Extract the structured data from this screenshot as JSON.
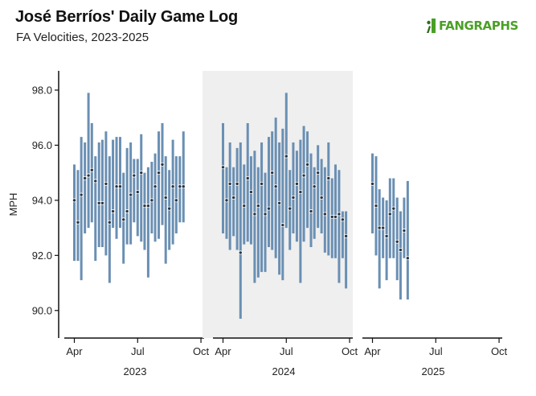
{
  "header": {
    "title": "José Berríos' Daily Game Log",
    "subtitle": "FA Velocities, 2023-2025",
    "logo_text": "FANGRAPHS"
  },
  "colors": {
    "bar": "#6a8fb3",
    "point_fill": "#2a3340",
    "panel_shade": "#efefef",
    "logo_green": "#4aa026"
  },
  "chart_data": {
    "type": "errorbar",
    "ylabel": "MPH",
    "ylim": [
      89,
      98.7
    ],
    "y_ticks": [
      "98.0",
      "96.0",
      "94.0",
      "92.0",
      "90.0"
    ],
    "y_tick_values": [
      98,
      96,
      94,
      92,
      90
    ],
    "x_ticks": [
      "Apr",
      "Jul",
      "Oct"
    ],
    "x_tick_months": [
      4,
      7,
      10
    ],
    "xlim_months": [
      3.6,
      10.15
    ],
    "panels": [
      {
        "year": "2023",
        "shaded": false,
        "games": [
          {
            "m": 4.0,
            "avg": 94.0,
            "lo": 91.8,
            "hi": 95.3
          },
          {
            "m": 4.17,
            "avg": 93.2,
            "lo": 91.8,
            "hi": 95.1
          },
          {
            "m": 4.33,
            "avg": 94.2,
            "lo": 91.1,
            "hi": 96.3
          },
          {
            "m": 4.5,
            "avg": 94.8,
            "lo": 92.8,
            "hi": 96.1
          },
          {
            "m": 4.67,
            "avg": 94.9,
            "lo": 93.0,
            "hi": 97.9
          },
          {
            "m": 4.83,
            "avg": 95.1,
            "lo": 93.2,
            "hi": 96.8
          },
          {
            "m": 5.0,
            "avg": 94.7,
            "lo": 91.8,
            "hi": 95.6
          },
          {
            "m": 5.17,
            "avg": 93.9,
            "lo": 92.3,
            "hi": 96.1
          },
          {
            "m": 5.33,
            "avg": 93.9,
            "lo": 92.3,
            "hi": 96.2
          },
          {
            "m": 5.5,
            "avg": 94.6,
            "lo": 92.0,
            "hi": 96.5
          },
          {
            "m": 5.67,
            "avg": 93.2,
            "lo": 91.0,
            "hi": 95.6
          },
          {
            "m": 5.83,
            "avg": 93.6,
            "lo": 93.0,
            "hi": 96.2
          },
          {
            "m": 6.0,
            "avg": 94.5,
            "lo": 92.6,
            "hi": 96.3
          },
          {
            "m": 6.17,
            "avg": 94.5,
            "lo": 93.0,
            "hi": 96.3
          },
          {
            "m": 6.33,
            "avg": 93.3,
            "lo": 91.7,
            "hi": 95.0
          },
          {
            "m": 6.5,
            "avg": 93.6,
            "lo": 92.4,
            "hi": 95.9
          },
          {
            "m": 6.67,
            "avg": 94.2,
            "lo": 92.4,
            "hi": 96.1
          },
          {
            "m": 6.83,
            "avg": 94.9,
            "lo": 93.2,
            "hi": 95.5
          },
          {
            "m": 7.0,
            "avg": 94.3,
            "lo": 92.7,
            "hi": 95.5
          },
          {
            "m": 7.17,
            "avg": 95.0,
            "lo": 92.5,
            "hi": 96.4
          },
          {
            "m": 7.33,
            "avg": 93.8,
            "lo": 92.2,
            "hi": 95.0
          },
          {
            "m": 7.5,
            "avg": 93.8,
            "lo": 91.2,
            "hi": 95.2
          },
          {
            "m": 7.67,
            "avg": 94.0,
            "lo": 92.8,
            "hi": 95.4
          },
          {
            "m": 7.83,
            "avg": 94.5,
            "lo": 92.5,
            "hi": 95.7
          },
          {
            "m": 8.0,
            "avg": 95.0,
            "lo": 92.6,
            "hi": 96.5
          },
          {
            "m": 8.17,
            "avg": 95.3,
            "lo": 93.1,
            "hi": 96.8
          },
          {
            "m": 8.33,
            "avg": 94.1,
            "lo": 91.7,
            "hi": 95.6
          },
          {
            "m": 8.5,
            "avg": 93.7,
            "lo": 92.2,
            "hi": 95.1
          },
          {
            "m": 8.67,
            "avg": 94.5,
            "lo": 92.4,
            "hi": 96.2
          },
          {
            "m": 8.83,
            "avg": 94.0,
            "lo": 92.8,
            "hi": 95.6
          },
          {
            "m": 9.0,
            "avg": 94.5,
            "lo": 93.2,
            "hi": 95.6
          },
          {
            "m": 9.17,
            "avg": 94.5,
            "lo": 93.2,
            "hi": 96.5
          }
        ]
      },
      {
        "year": "2024",
        "shaded": true,
        "games": [
          {
            "m": 4.0,
            "avg": 95.2,
            "lo": 92.8,
            "hi": 96.8
          },
          {
            "m": 4.17,
            "avg": 94.0,
            "lo": 92.6,
            "hi": 95.2
          },
          {
            "m": 4.33,
            "avg": 94.6,
            "lo": 92.2,
            "hi": 96.1
          },
          {
            "m": 4.5,
            "avg": 94.1,
            "lo": 92.7,
            "hi": 95.2
          },
          {
            "m": 4.67,
            "avg": 94.6,
            "lo": 92.2,
            "hi": 95.9
          },
          {
            "m": 4.83,
            "avg": 92.1,
            "lo": 89.7,
            "hi": 96.1
          },
          {
            "m": 5.0,
            "avg": 93.8,
            "lo": 92.4,
            "hi": 95.3
          },
          {
            "m": 5.17,
            "avg": 94.8,
            "lo": 92.5,
            "hi": 96.8
          },
          {
            "m": 5.33,
            "avg": 94.3,
            "lo": 92.4,
            "hi": 95.6
          },
          {
            "m": 5.5,
            "avg": 93.5,
            "lo": 91.0,
            "hi": 95.8
          },
          {
            "m": 5.67,
            "avg": 93.8,
            "lo": 91.2,
            "hi": 95.2
          },
          {
            "m": 5.83,
            "avg": 94.6,
            "lo": 91.4,
            "hi": 96.1
          },
          {
            "m": 6.0,
            "avg": 93.5,
            "lo": 91.4,
            "hi": 95.0
          },
          {
            "m": 6.17,
            "avg": 93.7,
            "lo": 92.3,
            "hi": 96.3
          },
          {
            "m": 6.33,
            "avg": 95.0,
            "lo": 92.2,
            "hi": 96.5
          },
          {
            "m": 6.5,
            "avg": 94.5,
            "lo": 91.9,
            "hi": 97.0
          },
          {
            "m": 6.67,
            "avg": 93.9,
            "lo": 91.3,
            "hi": 96.1
          },
          {
            "m": 6.83,
            "avg": 93.1,
            "lo": 91.1,
            "hi": 96.6
          },
          {
            "m": 7.0,
            "avg": 95.6,
            "lo": 93.0,
            "hi": 97.9
          },
          {
            "m": 7.17,
            "avg": 93.7,
            "lo": 92.2,
            "hi": 95.1
          },
          {
            "m": 7.33,
            "avg": 94.1,
            "lo": 92.8,
            "hi": 96.1
          },
          {
            "m": 7.5,
            "avg": 94.6,
            "lo": 92.5,
            "hi": 95.8
          },
          {
            "m": 7.67,
            "avg": 94.3,
            "lo": 91.0,
            "hi": 96.2
          },
          {
            "m": 7.83,
            "avg": 94.9,
            "lo": 92.5,
            "hi": 96.7
          },
          {
            "m": 8.0,
            "avg": 95.3,
            "lo": 93.0,
            "hi": 96.5
          },
          {
            "m": 8.17,
            "avg": 93.6,
            "lo": 92.3,
            "hi": 95.7
          },
          {
            "m": 8.33,
            "avg": 94.5,
            "lo": 92.6,
            "hi": 95.2
          },
          {
            "m": 8.5,
            "avg": 95.0,
            "lo": 93.0,
            "hi": 96.0
          },
          {
            "m": 8.67,
            "avg": 94.1,
            "lo": 92.8,
            "hi": 95.5
          },
          {
            "m": 8.83,
            "avg": 93.5,
            "lo": 92.1,
            "hi": 95.2
          },
          {
            "m": 9.0,
            "avg": 94.8,
            "lo": 92.0,
            "hi": 96.1
          },
          {
            "m": 9.17,
            "avg": 93.4,
            "lo": 91.9,
            "hi": 94.8
          },
          {
            "m": 9.33,
            "avg": 93.4,
            "lo": 91.9,
            "hi": 95.3
          },
          {
            "m": 9.5,
            "avg": 93.5,
            "lo": 91.0,
            "hi": 95.1
          },
          {
            "m": 9.67,
            "avg": 93.3,
            "lo": 91.9,
            "hi": 93.6
          },
          {
            "m": 9.83,
            "avg": 92.7,
            "lo": 90.8,
            "hi": 93.6
          }
        ]
      },
      {
        "year": "2025",
        "shaded": false,
        "games": [
          {
            "m": 4.0,
            "avg": 94.6,
            "lo": 92.8,
            "hi": 95.7
          },
          {
            "m": 4.17,
            "avg": 93.8,
            "lo": 92.0,
            "hi": 95.6
          },
          {
            "m": 4.33,
            "avg": 93.0,
            "lo": 90.8,
            "hi": 94.4
          },
          {
            "m": 4.5,
            "avg": 93.0,
            "lo": 91.9,
            "hi": 94.1
          },
          {
            "m": 4.67,
            "avg": 92.7,
            "lo": 91.1,
            "hi": 94.0
          },
          {
            "m": 4.83,
            "avg": 93.5,
            "lo": 91.9,
            "hi": 94.8
          },
          {
            "m": 5.0,
            "avg": 93.7,
            "lo": 91.9,
            "hi": 94.8
          },
          {
            "m": 5.17,
            "avg": 92.5,
            "lo": 91.1,
            "hi": 94.1
          },
          {
            "m": 5.33,
            "avg": 92.2,
            "lo": 90.4,
            "hi": 93.6
          },
          {
            "m": 5.5,
            "avg": 92.9,
            "lo": 91.9,
            "hi": 94.1
          },
          {
            "m": 5.67,
            "avg": 91.9,
            "lo": 90.4,
            "hi": 94.7
          }
        ]
      }
    ]
  }
}
